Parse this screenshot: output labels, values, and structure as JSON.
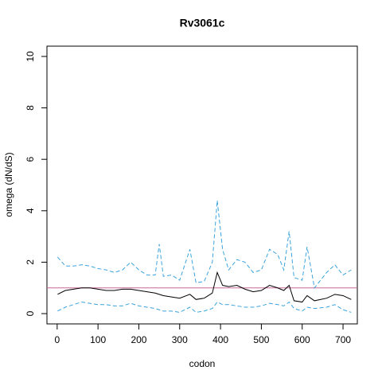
{
  "chart_data": {
    "type": "line",
    "title": "Rv3061c",
    "xlabel": "codon",
    "ylabel": "omega (dN/dS)",
    "x": [
      1,
      20,
      40,
      60,
      80,
      100,
      120,
      140,
      160,
      180,
      200,
      220,
      240,
      250,
      260,
      280,
      300,
      325,
      340,
      360,
      380,
      392,
      405,
      420,
      440,
      460,
      480,
      500,
      520,
      540,
      555,
      568,
      580,
      600,
      612,
      630,
      660,
      680,
      700,
      720
    ],
    "series": [
      {
        "color": "#000000",
        "dashed": false,
        "values": [
          0.75,
          0.9,
          0.95,
          1.0,
          1.0,
          0.95,
          0.9,
          0.9,
          0.95,
          0.95,
          0.9,
          0.85,
          0.8,
          0.75,
          0.7,
          0.65,
          0.6,
          0.75,
          0.55,
          0.6,
          0.8,
          1.6,
          1.1,
          1.05,
          1.1,
          0.95,
          0.85,
          0.9,
          1.1,
          1.0,
          0.9,
          1.1,
          0.5,
          0.45,
          0.7,
          0.5,
          0.6,
          0.75,
          0.7,
          0.55
        ]
      },
      {
        "color": "#3ba3dc",
        "dashed": true,
        "values": [
          2.2,
          1.85,
          1.85,
          1.9,
          1.85,
          1.75,
          1.7,
          1.6,
          1.7,
          2.0,
          1.7,
          1.5,
          1.5,
          2.7,
          1.45,
          1.5,
          1.3,
          2.5,
          1.2,
          1.25,
          2.0,
          4.4,
          2.5,
          1.7,
          2.1,
          2.0,
          1.6,
          1.7,
          2.5,
          2.3,
          1.7,
          3.2,
          1.4,
          1.3,
          2.6,
          1.0,
          1.6,
          1.9,
          1.5,
          1.7
        ]
      },
      {
        "color": "#3ba3dc",
        "dashed": true,
        "values": [
          0.1,
          0.25,
          0.35,
          0.45,
          0.4,
          0.35,
          0.35,
          0.3,
          0.3,
          0.4,
          0.3,
          0.25,
          0.2,
          0.15,
          0.1,
          0.1,
          0.05,
          0.25,
          0.05,
          0.1,
          0.2,
          0.45,
          0.35,
          0.35,
          0.3,
          0.25,
          0.25,
          0.3,
          0.4,
          0.35,
          0.3,
          0.45,
          0.2,
          0.1,
          0.25,
          0.2,
          0.25,
          0.35,
          0.15,
          0.05
        ]
      }
    ],
    "reference_line": {
      "value": 1,
      "color": "#cc6699"
    },
    "xlim": [
      -25,
      735
    ],
    "ylim": [
      -0.4,
      10.4
    ],
    "xticks": [
      0,
      100,
      200,
      300,
      400,
      500,
      600,
      700
    ],
    "yticks": [
      0,
      2,
      4,
      6,
      8,
      10
    ]
  }
}
